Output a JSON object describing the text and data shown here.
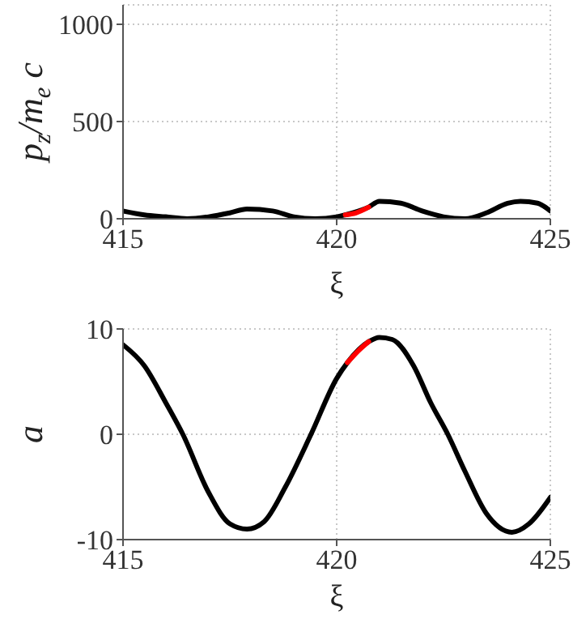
{
  "chart_data": [
    {
      "type": "line",
      "xlabel": "ξ",
      "ylabel": "p$_{z}$/m$_{e}$ c",
      "xlim": [
        415,
        425
      ],
      "xticks": [
        415,
        420,
        425
      ],
      "ylim": [
        0,
        1100
      ],
      "yticks": [
        0,
        500,
        1000
      ],
      "grid": true,
      "series": [
        {
          "color": "#000000",
          "x": [
            415,
            415.5,
            416,
            416.5,
            417,
            417.5,
            417.9,
            418.5,
            419,
            419.5,
            420,
            420.2,
            420.75,
            421,
            421.5,
            422,
            422.5,
            423,
            423.5,
            424,
            424.3,
            424.7,
            425
          ],
          "values": [
            40,
            20,
            10,
            0,
            10,
            30,
            50,
            40,
            10,
            0,
            10,
            20,
            60,
            90,
            80,
            40,
            10,
            0,
            30,
            80,
            90,
            80,
            40
          ]
        },
        {
          "color": "#ff0000",
          "x": [
            420.2,
            420.45,
            420.75
          ],
          "values": [
            20,
            30,
            60
          ]
        }
      ]
    },
    {
      "type": "line",
      "xlabel": "ξ",
      "ylabel": "a",
      "xlim": [
        415,
        425
      ],
      "xticks": [
        415,
        420,
        425
      ],
      "ylim": [
        -10,
        10
      ],
      "yticks": [
        -10,
        0,
        10
      ],
      "grid": true,
      "series": [
        {
          "color": "#000000",
          "x": [
            415,
            415.5,
            416,
            416.4,
            417,
            417.5,
            417.9,
            418.3,
            418.8,
            419.4,
            420,
            420.25,
            420.75,
            421,
            421.3,
            421.8,
            422.2,
            422.6,
            423,
            423.5,
            424.1,
            424.5,
            425
          ],
          "values": [
            8.5,
            6.5,
            3,
            0,
            -5.5,
            -8.5,
            -9,
            -8.3,
            -5,
            0,
            5.3,
            6.8,
            8.8,
            9.2,
            9,
            6.5,
            3,
            0,
            -3.5,
            -7.5,
            -9.3,
            -8.5,
            -6
          ]
        },
        {
          "color": "#ff0000",
          "x": [
            420.25,
            420.5,
            420.75
          ],
          "values": [
            6.8,
            7.9,
            8.8
          ]
        }
      ]
    }
  ]
}
